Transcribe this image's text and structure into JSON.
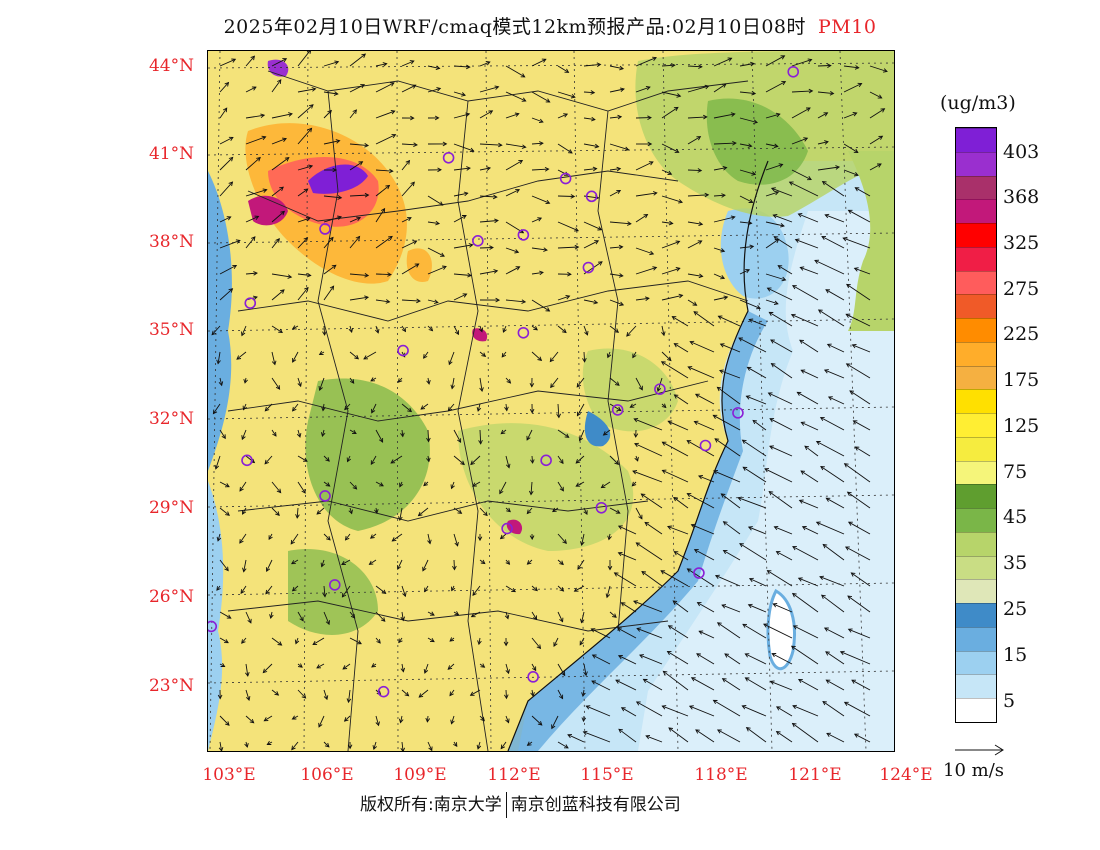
{
  "title": {
    "text": "2025年02月10日WRF/cmaq模式12km预报产品:02月10日08时",
    "variable": "PM10"
  },
  "map": {
    "lat_labels": [
      "44°N",
      "41°N",
      "38°N",
      "35°N",
      "32°N",
      "29°N",
      "26°N",
      "23°N"
    ],
    "lon_labels": [
      "103°E",
      "106°E",
      "109°E",
      "112°E",
      "115°E",
      "118°E",
      "121°E",
      "124°E"
    ]
  },
  "legend": {
    "units": "(ug/m3)",
    "labels": [
      "403",
      "368",
      "325",
      "275",
      "225",
      "175",
      "125",
      "75",
      "45",
      "35",
      "25",
      "15",
      "5"
    ],
    "colors": [
      "#7f1fd6",
      "#9a2fcf",
      "#a9306a",
      "#c2187a",
      "#ff0000",
      "#f01e46",
      "#ff5c5c",
      "#f05a28",
      "#ff8c00",
      "#ffad2a",
      "#f5b041",
      "#ffe000",
      "#ffee33",
      "#f6ec3f",
      "#f5f57a",
      "#5f9e2f",
      "#7ab648",
      "#b7d46a",
      "#c9dd84",
      "#dfe7b8",
      "#3f8bc8",
      "#6aaee0",
      "#9cd0f0",
      "#c6e6f7",
      "#ffffff"
    ]
  },
  "vector_key": {
    "label": "10 m/s"
  },
  "copyright": {
    "left": "版权所有:南京大学",
    "right": "南京创蓝科技有限公司"
  },
  "stations": [
    {
      "lat": 43.7,
      "lon": 120.9
    },
    {
      "lat": 40.8,
      "lon": 110.3
    },
    {
      "lat": 40.1,
      "lon": 113.9
    },
    {
      "lat": 39.5,
      "lon": 114.7
    },
    {
      "lat": 38.4,
      "lon": 106.5
    },
    {
      "lat": 38.0,
      "lon": 111.2
    },
    {
      "lat": 38.2,
      "lon": 112.6
    },
    {
      "lat": 37.1,
      "lon": 114.6
    },
    {
      "lat": 35.9,
      "lon": 104.2
    },
    {
      "lat": 34.9,
      "lon": 112.6
    },
    {
      "lat": 34.3,
      "lon": 108.9
    },
    {
      "lat": 33.0,
      "lon": 116.8
    },
    {
      "lat": 32.3,
      "lon": 115.5
    },
    {
      "lat": 32.2,
      "lon": 119.2
    },
    {
      "lat": 31.1,
      "lon": 118.2
    },
    {
      "lat": 30.6,
      "lon": 104.1
    },
    {
      "lat": 30.6,
      "lon": 113.3
    },
    {
      "lat": 29.4,
      "lon": 106.5
    },
    {
      "lat": 29.0,
      "lon": 115.0
    },
    {
      "lat": 28.3,
      "lon": 112.1
    },
    {
      "lat": 26.8,
      "lon": 118.0
    },
    {
      "lat": 26.4,
      "lon": 106.8
    },
    {
      "lat": 25.0,
      "lon": 103.0
    },
    {
      "lat": 23.3,
      "lon": 112.9
    },
    {
      "lat": 22.8,
      "lon": 108.3
    }
  ]
}
